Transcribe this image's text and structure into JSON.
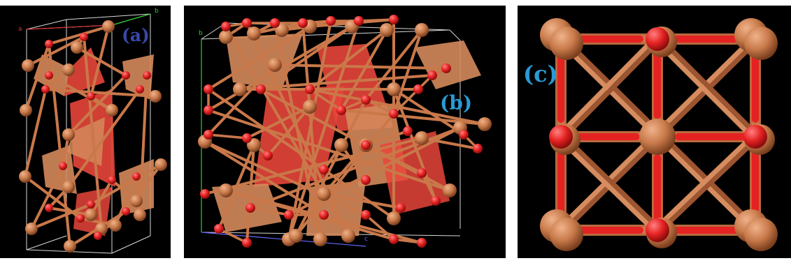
{
  "panels": [
    {
      "id": "a",
      "label": "(a)",
      "axes": [
        "a",
        "b"
      ]
    },
    {
      "id": "b",
      "label": "(b)",
      "axes": [
        "b",
        "c"
      ]
    },
    {
      "id": "c",
      "label": "(c)"
    }
  ],
  "colors": {
    "background": "#000000",
    "copper_atom": "#c87a4a",
    "oxygen_atom": "#e52222",
    "bond": "#c9784a",
    "polyhedron_red": "#e8453a",
    "polyhedron_tan": "#d48a5c",
    "label_a": "#3a48a8",
    "label_bc": "#2a9ad6",
    "cell_edge": "#d8d8d8"
  }
}
